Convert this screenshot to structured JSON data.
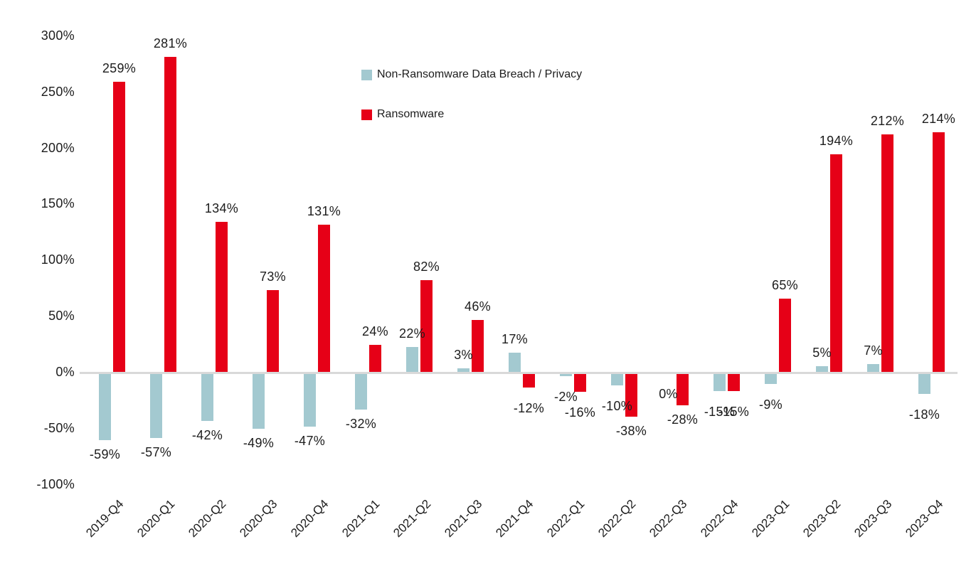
{
  "chart_data": {
    "type": "bar",
    "title": "",
    "xlabel": "",
    "ylabel": "",
    "categories": [
      "2019-Q4",
      "2020-Q1",
      "2020-Q2",
      "2020-Q3",
      "2020-Q4",
      "2021-Q1",
      "2021-Q2",
      "2021-Q3",
      "2021-Q4",
      "2022-Q1",
      "2022-Q2",
      "2022-Q3",
      "2022-Q4",
      "2023-Q1",
      "2023-Q2",
      "2023-Q3",
      "2023-Q4"
    ],
    "series": [
      {
        "name": "Non-Ransomware Data Breach / Privacy",
        "color": "#a3c9d0",
        "values": [
          -59,
          -57,
          -42,
          -49,
          -47,
          -32,
          22,
          3,
          17,
          -2,
          -10,
          0,
          -15,
          -9,
          5,
          7,
          -18
        ],
        "labels": [
          "-59%",
          "-57%",
          "-42%",
          "-49%",
          "-47%",
          "-32%",
          "22%",
          "3%",
          "17%",
          "-2%",
          "-10%",
          "0%",
          "-15%",
          "-9%",
          "5%",
          "7%",
          "-18%"
        ]
      },
      {
        "name": "Ransomware",
        "color": "#e8randm",
        "values": [
          259,
          281,
          134,
          73,
          131,
          24,
          82,
          46,
          -12,
          -16,
          -38,
          -28,
          -15,
          65,
          194,
          212,
          214
        ],
        "labels": [
          "259%",
          "281%",
          "134%",
          "73%",
          "131%",
          "24%",
          "82%",
          "46%",
          "-12%",
          "-16%",
          "-38%",
          "-28%",
          "-15%",
          "65%",
          "194%",
          "212%",
          "214%"
        ]
      }
    ],
    "ylim": [
      -100,
      300
    ],
    "yticks": [
      {
        "value": 300,
        "label": "300%"
      },
      {
        "value": 250,
        "label": "250%"
      },
      {
        "value": 200,
        "label": "200%"
      },
      {
        "value": 150,
        "label": "150%"
      },
      {
        "value": 100,
        "label": "100%"
      },
      {
        "value": 50,
        "label": "50%"
      },
      {
        "value": 0,
        "label": "0%"
      },
      {
        "value": -50,
        "label": "-50%"
      },
      {
        "value": -100,
        "label": "-100%"
      }
    ],
    "grid": false,
    "legend_position": "top-center",
    "value_labels": true,
    "colors": {
      "non_ransomware": "#a3c9d0",
      "ransomware": "#e60017",
      "axis_line": "#d9d9d9",
      "text": "#1c1c1c"
    }
  },
  "legend": {
    "items": [
      {
        "label": "Non-Ransomware Data Breach / Privacy"
      },
      {
        "label": "Ransomware"
      }
    ]
  }
}
